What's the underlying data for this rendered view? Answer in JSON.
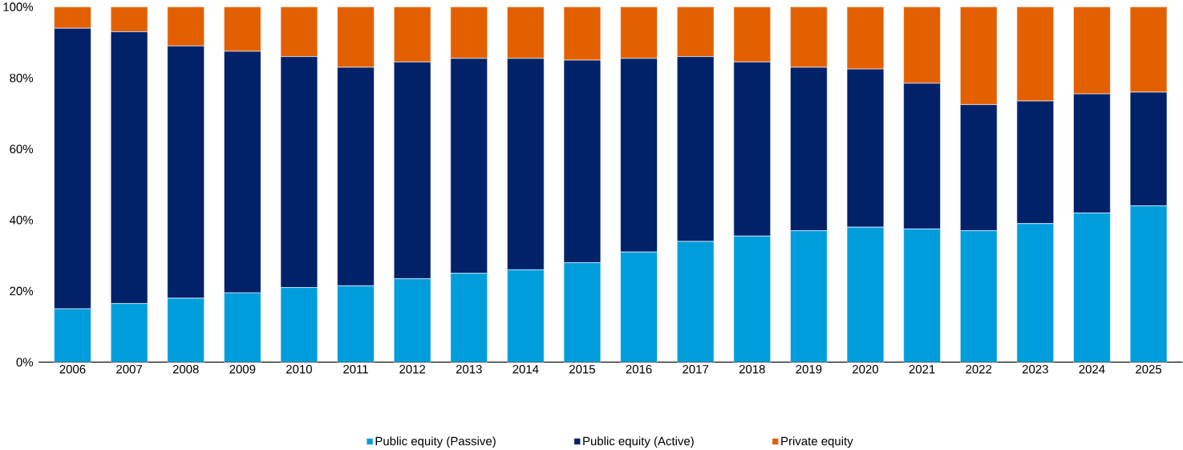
{
  "chart_data": {
    "type": "bar",
    "stacked": true,
    "categories": [
      "2006",
      "2007",
      "2008",
      "2009",
      "2010",
      "2011",
      "2012",
      "2013",
      "2014",
      "2015",
      "2016",
      "2017",
      "2018",
      "2019",
      "2020",
      "2021",
      "2022",
      "2023",
      "2024",
      "2025"
    ],
    "series": [
      {
        "name": "Public equity (Passive)",
        "color": "#009ddc",
        "values": [
          15,
          16.5,
          18,
          19.5,
          21,
          21.5,
          23.5,
          25,
          26,
          28,
          31,
          34,
          35.5,
          37,
          38,
          37.5,
          37,
          39,
          42,
          44
        ]
      },
      {
        "name": "Public equity (Active)",
        "color": "#012169",
        "values": [
          79,
          76.5,
          71,
          68,
          65,
          61.5,
          61,
          60.5,
          59.5,
          57,
          54.5,
          52,
          49,
          46,
          44.5,
          41,
          35.5,
          34.5,
          33.5,
          32
        ]
      },
      {
        "name": "Private equity",
        "color": "#e36000",
        "values": [
          6,
          7,
          11,
          12.5,
          14,
          17,
          15.5,
          14.5,
          14.5,
          15,
          14.5,
          14,
          15.5,
          17,
          17.5,
          21.5,
          27.5,
          26.5,
          24.5,
          24
        ]
      }
    ],
    "ylim": [
      0,
      100
    ],
    "yticks": [
      {
        "value": 0,
        "label": "0%"
      },
      {
        "value": 20,
        "label": "20%"
      },
      {
        "value": 40,
        "label": "40%"
      },
      {
        "value": 60,
        "label": "60%"
      },
      {
        "value": 80,
        "label": "80%"
      },
      {
        "value": 100,
        "label": "100%"
      }
    ],
    "legend": "bottom",
    "grid": false
  }
}
